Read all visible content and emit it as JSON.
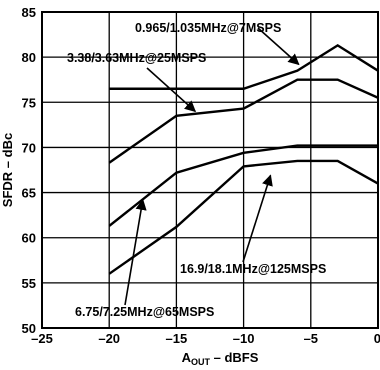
{
  "chart_data": {
    "type": "line",
    "xlabel_main": "A",
    "xlabel_sub": "OUT",
    "xlabel_rest": " – dBFS",
    "ylabel": "SFDR – dBc",
    "xlim": [
      -25,
      0
    ],
    "ylim": [
      50,
      85
    ],
    "xticks": [
      -25,
      -20,
      -15,
      -10,
      -5,
      0
    ],
    "xtick_labels": [
      "–25",
      "–20",
      "–15",
      "–10",
      "–5",
      "0"
    ],
    "yticks": [
      50,
      55,
      60,
      65,
      70,
      75,
      80,
      85
    ],
    "grid": true,
    "legend": "none",
    "series": [
      {
        "name": "0.965/1.035MHz@7MSPS",
        "x": [
          -20,
          -15,
          -10,
          -6,
          -3,
          0
        ],
        "y": [
          76.5,
          76.5,
          76.5,
          78.5,
          81.3,
          78.5
        ]
      },
      {
        "name": "3.38/3.63MHz@25MSPS",
        "x": [
          -20,
          -15,
          -10,
          -6,
          -3,
          0
        ],
        "y": [
          68.3,
          73.5,
          74.3,
          77.5,
          77.5,
          75.5
        ]
      },
      {
        "name": "6.75/7.25MHz@65MSPS",
        "x": [
          -20,
          -15,
          -10,
          -6,
          -3,
          0
        ],
        "y": [
          61.3,
          67.2,
          69.4,
          70.2,
          70.2,
          70.2
        ]
      },
      {
        "name": "16.9/18.1MHz@125MSPS",
        "x": [
          -20,
          -15,
          -10,
          -6,
          -3,
          0
        ],
        "y": [
          56,
          61.2,
          67.9,
          68.5,
          68.5,
          66
        ]
      }
    ],
    "annotations": [
      {
        "text": "0.965/1.035MHz@7MSPS",
        "series": 0
      },
      {
        "text": "3.38/3.63MHz@25MSPS",
        "series": 1
      },
      {
        "text": "6.75/7.25MHz@65MSPS",
        "series": 2
      },
      {
        "text": "16.9/18.1MHz@125MSPS",
        "series": 3
      }
    ]
  }
}
